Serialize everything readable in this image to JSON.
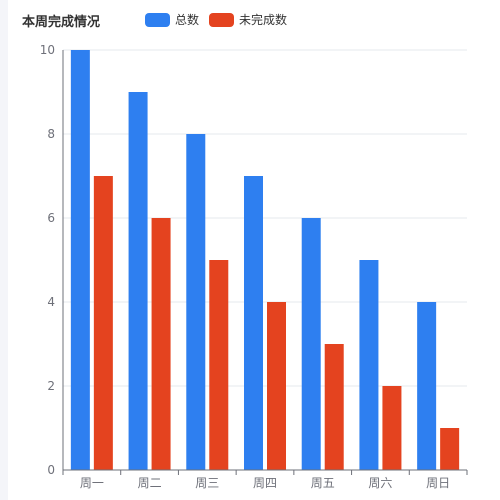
{
  "title": "本周完成情况",
  "chart_data": {
    "type": "bar",
    "categories": [
      "周一",
      "周二",
      "周三",
      "周四",
      "周五",
      "周六",
      "周日"
    ],
    "series": [
      {
        "name": "总数",
        "values": [
          10,
          9,
          8,
          7,
          6,
          5,
          4
        ],
        "color": "#2e7ff0"
      },
      {
        "name": "未完成数",
        "values": [
          7,
          6,
          5,
          4,
          3,
          2,
          1
        ],
        "color": "#e4431f"
      }
    ],
    "ylim": [
      0,
      10
    ],
    "yticks": [
      0,
      2,
      4,
      6,
      8,
      10
    ],
    "grid": true,
    "legend_position": "top"
  }
}
